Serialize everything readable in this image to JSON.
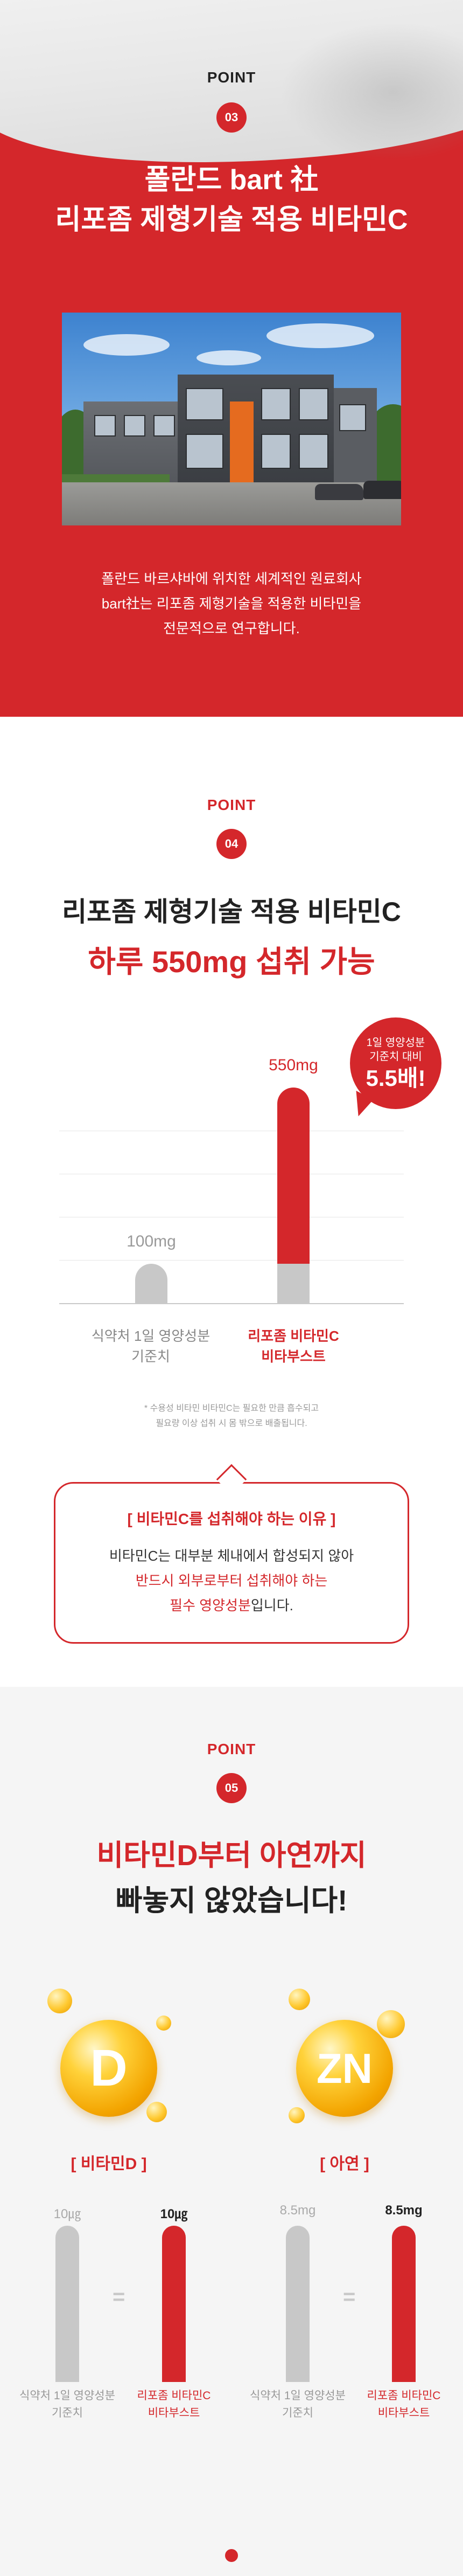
{
  "colors": {
    "accent": "#d4272b",
    "gray_bar": "#c8c8c8",
    "gold": "#f3a400"
  },
  "point3": {
    "label": "POINT",
    "number": "03",
    "title_line1": "폴란드 bart 社",
    "title_line2": "리포좀 제형기술 적용 비타민C",
    "desc_line1": "폴란드 바르샤바에 위치한 세계적인 원료회사",
    "desc_line2": "bart社는 리포좀 제형기술을 적용한 비타민을",
    "desc_line3": "전문적으로 연구합니다."
  },
  "point4": {
    "label": "POINT",
    "number": "04",
    "title_line1": "리포좀 제형기술 적용 비타민C",
    "title_line2": "하루 550mg 섭취 가능",
    "bubble_line1": "1일 영양성분",
    "bubble_line2": "기준치 대비",
    "bubble_value": "5.5배!",
    "footnote_line1": "* 수용성 비타민 비타민C는 필요한 만큼 흡수되고",
    "footnote_line2": "필요량 이상 섭취 시 몸 밖으로 배출됩니다."
  },
  "chart_data": {
    "type": "bar",
    "categories": [
      "식약처 1일 영양성분 기준치",
      "리포좀 비타민C 비타부스트"
    ],
    "values": [
      100,
      550
    ],
    "unit": "mg",
    "value_labels": [
      "100mg",
      "550mg"
    ],
    "category_line1": [
      "식약처 1일 영양성분",
      "리포좀 비타민C"
    ],
    "category_line2": [
      "기준치",
      "비타부스트"
    ],
    "colors": [
      "#c8c8c8",
      "#d4272b"
    ]
  },
  "reason": {
    "title": "[ 비타민C를 섭취해야 하는 이유 ]",
    "line1": "비타민C는 대부분 체내에서 합성되지 않아",
    "line2": "반드시 외부로부터 섭취해야 하는",
    "line3_hl": "필수 영양성분",
    "line3_rest": "입니다."
  },
  "point5": {
    "label": "POINT",
    "number": "05",
    "title_line1": "비타민D부터 아연까지",
    "title_line2": "빠놓지 않았습니다!",
    "nutrients": [
      {
        "orb_text": "D",
        "name": "[ 비타민D ]",
        "ref_value": "10㎍",
        "product_value": "10㎍",
        "ref_line1": "식약처 1일 영양성분",
        "ref_line2": "기준치",
        "prod_line1": "리포좀 비타민C",
        "prod_line2": "비타부스트"
      },
      {
        "orb_text": "ZN",
        "name": "[ 아연 ]",
        "ref_value": "8.5mg",
        "product_value": "8.5mg",
        "ref_line1": "식약처 1일 영양성분",
        "ref_line2": "기준치",
        "prod_line1": "리포좀 비타민C",
        "prod_line2": "비타부스트"
      }
    ],
    "equals": "="
  }
}
